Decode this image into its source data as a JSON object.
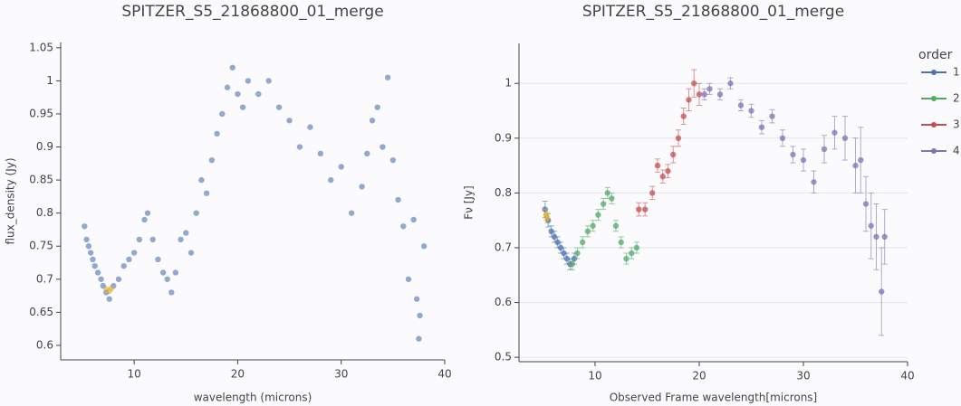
{
  "chart_data": [
    {
      "type": "scatter",
      "title": "SPITZER_S5_21868800_01_merge",
      "x_label": "wavelength (microns)",
      "y_label": "flux_density (Jy)",
      "xlim": [
        2.9,
        40
      ],
      "ylim": [
        0.578,
        1.058
      ],
      "xticks": [
        10,
        20,
        30,
        40
      ],
      "yticks": [
        0.6,
        0.65,
        0.7,
        0.75,
        0.8,
        0.85,
        0.9,
        0.95,
        1,
        1.05
      ],
      "grid": false,
      "series": [
        {
          "color": "#4c72b0",
          "x": [
            5.2,
            5.4,
            5.6,
            5.8,
            6.0,
            6.2,
            6.5,
            6.8,
            7.0,
            7.3,
            7.6,
            8.0,
            8.5,
            9.0,
            9.5,
            10.0,
            10.5,
            11.0,
            11.3,
            11.8,
            12.3,
            12.8,
            13.2,
            13.6,
            14.0,
            14.5,
            15.0,
            15.5,
            16.0,
            16.5,
            17.0,
            17.5,
            18.0,
            18.5,
            19.0,
            19.5,
            20.0,
            20.5,
            21.0,
            22.0,
            23.0,
            24.0,
            25.0,
            26.0,
            27.0,
            28.0,
            29.0,
            30.0,
            31.0,
            32.0,
            32.5,
            33.0,
            33.5,
            34.0,
            34.5,
            35.0,
            35.5,
            36.0,
            36.5,
            37.0,
            37.3,
            37.5,
            37.6,
            38.0
          ],
          "values": [
            0.78,
            0.76,
            0.75,
            0.74,
            0.73,
            0.72,
            0.71,
            0.7,
            0.69,
            0.68,
            0.67,
            0.69,
            0.7,
            0.72,
            0.73,
            0.74,
            0.76,
            0.79,
            0.8,
            0.76,
            0.73,
            0.71,
            0.7,
            0.68,
            0.71,
            0.76,
            0.77,
            0.74,
            0.8,
            0.85,
            0.83,
            0.88,
            0.92,
            0.95,
            0.99,
            1.02,
            0.98,
            0.96,
            1.0,
            0.98,
            1.0,
            0.96,
            0.94,
            0.9,
            0.93,
            0.89,
            0.85,
            0.87,
            0.8,
            0.84,
            0.89,
            0.94,
            0.96,
            0.9,
            1.005,
            0.88,
            0.82,
            0.78,
            0.7,
            0.79,
            0.67,
            0.61,
            0.645,
            0.75
          ]
        },
        {
          "color": "#dcb030",
          "x": [
            7.3,
            7.6,
            7.8
          ],
          "values": [
            0.685,
            0.682,
            0.686
          ]
        }
      ]
    },
    {
      "type": "scatter",
      "title": "SPITZER_S5_21868800_01_merge",
      "x_label": "Observed Frame wavelength[microns]",
      "y_label": "Fν [Jy]",
      "xlim": [
        2.7,
        40
      ],
      "ylim": [
        0.492,
        1.073
      ],
      "xticks": [
        10,
        20,
        30,
        40
      ],
      "yticks": [
        0.5,
        0.6,
        0.7,
        0.8,
        0.9,
        1
      ],
      "grid": true,
      "legend_title": "order",
      "series": [
        {
          "name": "1",
          "color": "#4c72b0",
          "x": [
            5.2,
            5.5,
            5.8,
            6.1,
            6.4,
            6.7,
            7.0,
            7.3,
            7.6,
            8.0
          ],
          "values": [
            0.77,
            0.75,
            0.73,
            0.72,
            0.71,
            0.7,
            0.69,
            0.68,
            0.67,
            0.68
          ],
          "errors": [
            0.015,
            0.012,
            0.01,
            0.01,
            0.01,
            0.01,
            0.01,
            0.01,
            0.01,
            0.01
          ]
        },
        {
          "name": "2",
          "color": "#55a868",
          "x": [
            7.8,
            8.3,
            8.8,
            9.3,
            9.8,
            10.3,
            10.8,
            11.2,
            11.6,
            12.0,
            12.5,
            13.0,
            13.5,
            14.0
          ],
          "values": [
            0.67,
            0.69,
            0.71,
            0.73,
            0.74,
            0.76,
            0.78,
            0.8,
            0.79,
            0.74,
            0.71,
            0.68,
            0.69,
            0.7
          ],
          "errors": [
            0.01,
            0.01,
            0.01,
            0.01,
            0.01,
            0.01,
            0.01,
            0.01,
            0.01,
            0.01,
            0.01,
            0.01,
            0.01,
            0.01
          ]
        },
        {
          "name": "3",
          "color": "#c44e52",
          "x": [
            14.2,
            14.8,
            15.5,
            16.0,
            16.5,
            17.0,
            17.5,
            18.0,
            18.5,
            19.0,
            19.5,
            20.0
          ],
          "values": [
            0.77,
            0.77,
            0.8,
            0.85,
            0.83,
            0.84,
            0.87,
            0.9,
            0.94,
            0.97,
            1.0,
            0.98
          ],
          "errors": [
            0.012,
            0.012,
            0.012,
            0.012,
            0.012,
            0.012,
            0.015,
            0.015,
            0.015,
            0.02,
            0.025,
            0.02
          ]
        },
        {
          "name": "4",
          "color": "#8172b3",
          "x": [
            20.5,
            21.0,
            22.0,
            23.0,
            24.0,
            25.0,
            26.0,
            27.0,
            28.0,
            29.0,
            30.0,
            31.0,
            32.0,
            33.0,
            34.0,
            35.0,
            35.5,
            36.0,
            36.5,
            37.0,
            37.5,
            37.8
          ],
          "values": [
            0.98,
            0.99,
            0.98,
            1.0,
            0.96,
            0.95,
            0.92,
            0.94,
            0.9,
            0.87,
            0.86,
            0.82,
            0.88,
            0.91,
            0.9,
            0.85,
            0.86,
            0.78,
            0.74,
            0.72,
            0.62,
            0.72
          ],
          "errors": [
            0.01,
            0.01,
            0.01,
            0.01,
            0.01,
            0.012,
            0.012,
            0.012,
            0.015,
            0.015,
            0.02,
            0.02,
            0.025,
            0.03,
            0.04,
            0.05,
            0.06,
            0.05,
            0.06,
            0.06,
            0.08,
            0.05
          ]
        },
        {
          "color": "#dcb030",
          "x": [
            5.3,
            5.4
          ],
          "values": [
            0.76,
            0.755
          ],
          "errors": [
            0.01,
            0.01
          ]
        }
      ]
    }
  ]
}
